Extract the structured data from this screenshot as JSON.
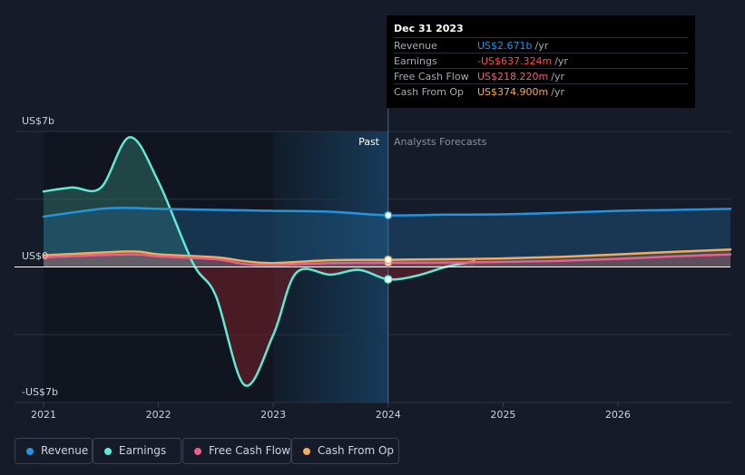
{
  "tooltip": {
    "date": "Dec 31 2023",
    "rows": [
      {
        "label": "Revenue",
        "value": "US$2.671b",
        "unit": "/yr",
        "color": "#2394df"
      },
      {
        "label": "Earnings",
        "value": "-US$637.324m",
        "unit": "/yr",
        "color": "#ff4d4d"
      },
      {
        "label": "Free Cash Flow",
        "value": "US$218.220m",
        "unit": "/yr",
        "color": "#e8618c"
      },
      {
        "label": "Cash From Op",
        "value": "US$374.900m",
        "unit": "/yr",
        "color": "#f2ac5c"
      }
    ]
  },
  "chart_data": {
    "type": "area",
    "title": "",
    "y_unit": "US$ billions",
    "y_labels": [
      "US$7b",
      "US$0",
      "-US$7b"
    ],
    "ylim": [
      -7,
      7
    ],
    "xlim": [
      2021.0,
      2026.98
    ],
    "x_ticks": [
      2021,
      2022,
      2023,
      2024,
      2025,
      2026
    ],
    "x_tick_labels": [
      "2021",
      "2022",
      "2023",
      "2024",
      "2025",
      "2026"
    ],
    "past_label": "Past",
    "forecast_label": "Analysts Forecasts",
    "divider_x": 2024.0,
    "highlight_start": 2023.0,
    "series": [
      {
        "name": "Revenue",
        "color": "#2394df",
        "x": [
          2021.0,
          2021.5,
          2021.75,
          2022.0,
          2022.5,
          2023.0,
          2023.5,
          2024.0,
          2024.5,
          2025.0,
          2025.5,
          2026.0,
          2026.5,
          2026.98
        ],
        "values": [
          2.6,
          3.0,
          3.05,
          3.0,
          2.95,
          2.9,
          2.85,
          2.67,
          2.7,
          2.72,
          2.8,
          2.9,
          2.95,
          3.0
        ]
      },
      {
        "name": "Earnings",
        "color": "#5eead4",
        "x": [
          2021.0,
          2021.25,
          2021.5,
          2021.75,
          2022.0,
          2022.3,
          2022.5,
          2022.75,
          2023.0,
          2023.2,
          2023.5,
          2023.75,
          2024.0,
          2024.25,
          2024.5,
          2024.75
        ],
        "values": [
          3.9,
          4.1,
          4.1,
          6.7,
          4.4,
          0.2,
          -1.5,
          -6.1,
          -3.5,
          -0.3,
          -0.4,
          -0.15,
          -0.64,
          -0.45,
          0.0,
          0.3
        ]
      },
      {
        "name": "Free Cash Flow",
        "color": "#e8618c",
        "x": [
          2021.0,
          2021.75,
          2022.0,
          2022.5,
          2022.75,
          2023.0,
          2023.5,
          2024.0,
          2024.5,
          2025.0,
          2025.5,
          2026.0,
          2026.5,
          2026.98
        ],
        "values": [
          0.5,
          0.65,
          0.55,
          0.4,
          0.15,
          0.1,
          0.2,
          0.22,
          0.23,
          0.26,
          0.32,
          0.42,
          0.55,
          0.65
        ]
      },
      {
        "name": "Cash From Op",
        "color": "#f2ac5c",
        "x": [
          2021.0,
          2021.75,
          2022.0,
          2022.5,
          2022.75,
          2023.0,
          2023.5,
          2024.0,
          2024.5,
          2025.0,
          2025.5,
          2026.0,
          2026.5,
          2026.98
        ],
        "values": [
          0.6,
          0.8,
          0.65,
          0.5,
          0.3,
          0.2,
          0.35,
          0.37,
          0.4,
          0.44,
          0.52,
          0.65,
          0.78,
          0.9
        ]
      }
    ],
    "highlight_values": [
      2.67,
      -0.64,
      0.22,
      0.37
    ]
  },
  "legend": [
    {
      "label": "Revenue",
      "color": "#2394df"
    },
    {
      "label": "Earnings",
      "color": "#5eead4"
    },
    {
      "label": "Free Cash Flow",
      "color": "#e8618c"
    },
    {
      "label": "Cash From Op",
      "color": "#f2ac5c"
    }
  ]
}
